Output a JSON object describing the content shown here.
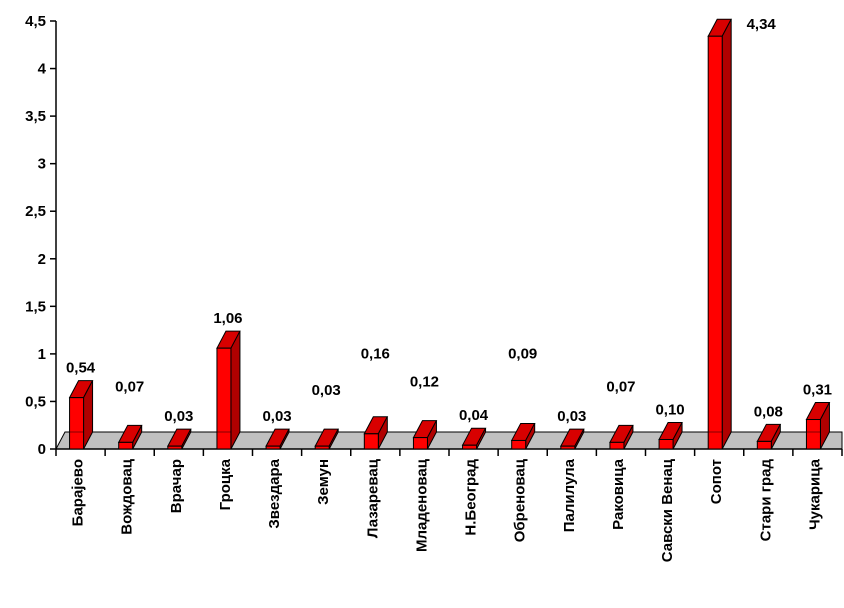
{
  "chart_data": {
    "type": "bar",
    "title": "",
    "xlabel": "",
    "ylabel": "",
    "ylim": [
      0,
      4.5
    ],
    "yticks": [
      "0",
      "0,5",
      "1",
      "1,5",
      "2",
      "2,5",
      "3",
      "3,5",
      "4",
      "4,5"
    ],
    "categories": [
      "Барајево",
      "Вождовац",
      "Врачар",
      "Гроцка",
      "Звездара",
      "Земун",
      "Лазаревац",
      "Младеновац",
      "Н.Београд",
      "Обреновац",
      "Палилула",
      "Раковица",
      "Савски Венац",
      "Сопот",
      "Стари град",
      "Чукарица"
    ],
    "values": [
      0.54,
      0.07,
      0.03,
      1.06,
      0.03,
      0.03,
      0.16,
      0.12,
      0.04,
      0.09,
      0.03,
      0.07,
      0.1,
      4.34,
      0.08,
      0.31
    ],
    "value_labels": [
      "0,54",
      "0,07",
      "0,03",
      "1,06",
      "0,03",
      "0,03",
      "0,16",
      "0,12",
      "0,04",
      "0,09",
      "0,03",
      "0,07",
      "0,10",
      "4,34",
      "0,08",
      "0,31"
    ],
    "grid": false,
    "legend": "none",
    "colors": {
      "bar_front": "#ff0000",
      "bar_side": "#b00000",
      "bar_top": "#d80000",
      "floor": "#c0c0c0",
      "axis": "#000000"
    }
  }
}
